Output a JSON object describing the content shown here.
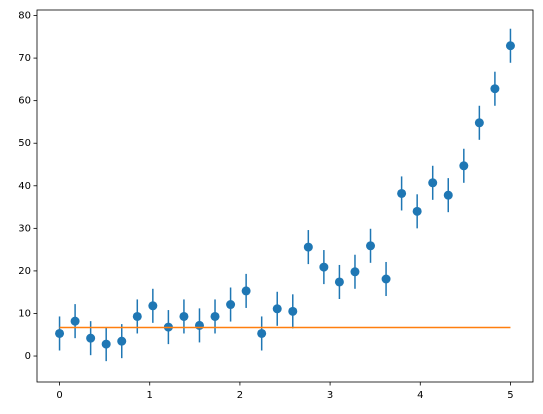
{
  "chart_data": {
    "type": "errorbar",
    "x": [
      0,
      0.1724,
      0.3448,
      0.5172,
      0.6897,
      0.8621,
      1.0345,
      1.2069,
      1.3793,
      1.5517,
      1.7241,
      1.8966,
      2.069,
      2.2414,
      2.4138,
      2.5862,
      2.7586,
      2.931,
      3.1034,
      3.2759,
      3.4483,
      3.6207,
      3.7931,
      3.9655,
      4.1379,
      4.3103,
      4.4828,
      4.6552,
      4.8276,
      5
    ],
    "values": [
      5.3,
      8.2,
      4.2,
      2.8,
      3.5,
      9.3,
      11.8,
      6.8,
      9.3,
      7.2,
      9.3,
      12.1,
      15.3,
      5.3,
      11.1,
      10.5,
      25.6,
      20.9,
      17.4,
      19.8,
      25.9,
      18.1,
      38.2,
      34.0,
      40.7,
      37.8,
      44.7,
      54.8,
      62.8,
      72.9
    ],
    "errors": [
      4,
      4,
      4,
      4,
      4,
      4,
      4,
      4,
      4,
      4,
      4,
      4,
      4,
      4,
      4,
      4,
      4,
      4,
      4,
      4,
      4,
      4,
      4,
      4,
      4,
      4,
      4,
      4,
      4,
      4
    ],
    "color": "#1f77b4",
    "line": {
      "x": [
        0,
        5
      ],
      "values": [
        6.7,
        6.7
      ],
      "color": "#ff7f0e"
    },
    "xlim": [
      -0.25,
      5.25
    ],
    "xticks": [
      0,
      1,
      2,
      3,
      4,
      5
    ],
    "ylim": [
      -6.1,
      81.3
    ],
    "yticks": [
      0,
      10,
      20,
      30,
      40,
      50,
      60,
      70,
      80
    ]
  }
}
